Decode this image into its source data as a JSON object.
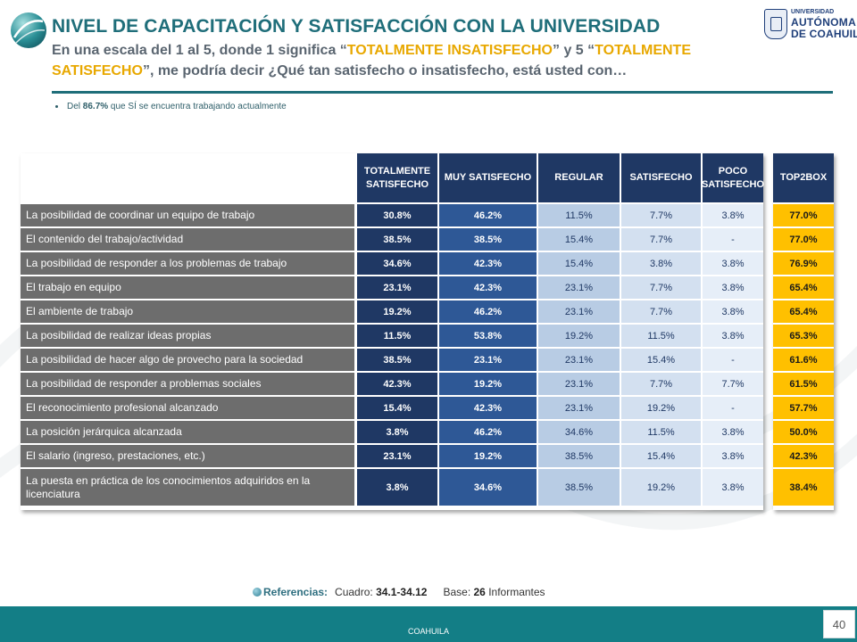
{
  "header": {
    "title": "NIVEL DE CAPACITACIÓN Y SATISFACCIÓN CON LA UNIVERSIDAD",
    "subtitle_p1": "En una escala del 1 al 5, donde 1 significa “",
    "subtitle_hl1": "TOTALMENTE INSATISFECHO",
    "subtitle_p2": "” y 5 “",
    "subtitle_hl2": "TOTALMENTE SATISFECHO",
    "subtitle_p3": "”, me podría decir ¿Qué tan satisfecho o insatisfecho, está usted con…"
  },
  "logo": {
    "line1": "UNIVERSIDAD",
    "line2": "AUTÓNOMA",
    "line3": "DE COAHUILA"
  },
  "note": {
    "prefix": "Del ",
    "pct": "86.7%",
    "suffix": " que SÍ se encuentra trabajando actualmente"
  },
  "table": {
    "headers": [
      "TOTALMENTE SATISFECHO",
      "MUY SATISFECHO",
      "REGULAR",
      "SATISFECHO",
      "POCO SATISFECHO"
    ],
    "top2_header": "TOP2BOX",
    "rows": [
      {
        "label": "La posibilidad de coordinar un equipo de trabajo",
        "vals": [
          "30.8%",
          "46.2%",
          "11.5%",
          "7.7%",
          "3.8%"
        ],
        "top2": "77.0%"
      },
      {
        "label": "El contenido del trabajo/actividad",
        "vals": [
          "38.5%",
          "38.5%",
          "15.4%",
          "7.7%",
          "-"
        ],
        "top2": "77.0%"
      },
      {
        "label": "La posibilidad de responder a los problemas de trabajo",
        "vals": [
          "34.6%",
          "42.3%",
          "15.4%",
          "3.8%",
          "3.8%"
        ],
        "top2": "76.9%"
      },
      {
        "label": "El trabajo en equipo",
        "vals": [
          "23.1%",
          "42.3%",
          "23.1%",
          "7.7%",
          "3.8%"
        ],
        "top2": "65.4%"
      },
      {
        "label": "El ambiente de trabajo",
        "vals": [
          "19.2%",
          "46.2%",
          "23.1%",
          "7.7%",
          "3.8%"
        ],
        "top2": "65.4%"
      },
      {
        "label": "La posibilidad de realizar ideas propias",
        "vals": [
          "11.5%",
          "53.8%",
          "19.2%",
          "11.5%",
          "3.8%"
        ],
        "top2": "65.3%"
      },
      {
        "label": "La posibilidad de hacer algo de provecho para la sociedad",
        "vals": [
          "38.5%",
          "23.1%",
          "23.1%",
          "15.4%",
          "-"
        ],
        "top2": "61.6%"
      },
      {
        "label": "La posibilidad de responder a problemas sociales",
        "vals": [
          "42.3%",
          "19.2%",
          "23.1%",
          "7.7%",
          "7.7%"
        ],
        "top2": "61.5%"
      },
      {
        "label": "El reconocimiento profesional alcanzado",
        "vals": [
          "15.4%",
          "42.3%",
          "23.1%",
          "19.2%",
          "-"
        ],
        "top2": "57.7%"
      },
      {
        "label": "La posición jerárquica alcanzada",
        "vals": [
          "3.8%",
          "46.2%",
          "34.6%",
          "11.5%",
          "3.8%"
        ],
        "top2": "50.0%"
      },
      {
        "label": "El salario (ingreso, prestaciones, etc.)",
        "vals": [
          "23.1%",
          "19.2%",
          "38.5%",
          "15.4%",
          "3.8%"
        ],
        "top2": "42.3%"
      },
      {
        "label": "La puesta en práctica de los conocimientos adquiridos en la licenciatura",
        "vals": [
          "3.8%",
          "34.6%",
          "38.5%",
          "19.2%",
          "3.8%"
        ],
        "top2": "38.4%"
      }
    ]
  },
  "refs": {
    "label": "Referencias:",
    "cuadro_label": "Cuadro: ",
    "cuadro": "34.1-34.12",
    "base_label": "Base: ",
    "base": "26",
    "base_suffix": " Informantes"
  },
  "footer": {
    "text": "COAHUILA",
    "page": "40"
  },
  "colors": {
    "teal": "#1f6e7a",
    "navy": "#1f3864",
    "gold": "#ffc000",
    "footer": "#137e86"
  }
}
